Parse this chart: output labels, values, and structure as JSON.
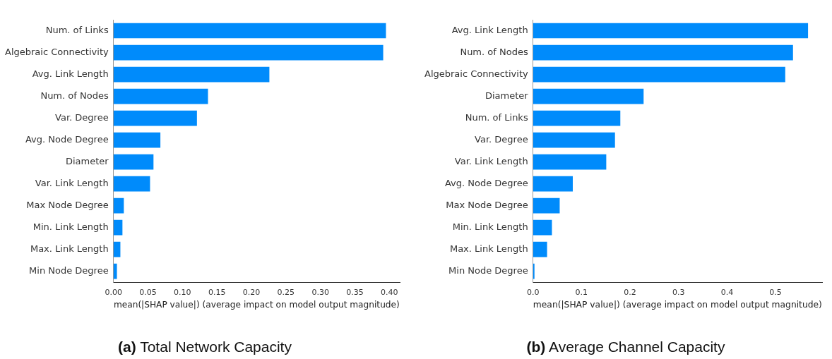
{
  "chart_data": [
    {
      "type": "bar",
      "orientation": "horizontal",
      "title": "(a) Total Network Capacity",
      "xlabel": "mean(|SHAP value|) (average impact on model output magnitude)",
      "categories": [
        "Num. of Links",
        "Algebraic Connectivity",
        "Avg. Link Length",
        "Num. of Nodes",
        "Var. Degree",
        "Avg. Node Degree",
        "Diameter",
        "Var. Link Length",
        "Max Node Degree",
        "Min. Link Length",
        "Max. Link Length",
        "Min Node Degree"
      ],
      "values": [
        0.395,
        0.391,
        0.226,
        0.137,
        0.121,
        0.068,
        0.058,
        0.053,
        0.015,
        0.013,
        0.01,
        0.005
      ],
      "color": "#008bfb",
      "xlim": [
        0,
        0.415
      ],
      "xticks": [
        {
          "value": 0,
          "label": "0.00"
        },
        0.05,
        {
          "value": 0.1,
          "label": "0.10"
        },
        0.15,
        {
          "value": 0.2,
          "label": "0.20"
        },
        0.25,
        {
          "value": 0.3,
          "label": "0.30"
        },
        0.35,
        {
          "value": 0.4,
          "label": "0.40"
        }
      ],
      "grid": false,
      "legend": false
    },
    {
      "type": "bar",
      "orientation": "horizontal",
      "title": "(b) Average Channel Capacity",
      "xlabel": "mean(|SHAP value|) (average impact on model output magnitude)",
      "categories": [
        "Avg. Link Length",
        "Num. of Nodes",
        "Algebraic Connectivity",
        "Diameter",
        "Num. of Links",
        "Var. Degree",
        "Var. Link Length",
        "Avg. Node Degree",
        "Max Node Degree",
        "Min. Link Length",
        "Max. Link Length",
        "Min Node Degree"
      ],
      "values": [
        0.567,
        0.536,
        0.52,
        0.228,
        0.18,
        0.169,
        0.151,
        0.082,
        0.055,
        0.039,
        0.029,
        0.003
      ],
      "color": "#008bfb",
      "xlim": [
        0,
        0.596
      ],
      "xticks": [
        {
          "value": 0,
          "label": "0.0"
        },
        0.1,
        0.2,
        0.3,
        0.4,
        0.5
      ],
      "grid": false,
      "legend": false
    }
  ]
}
